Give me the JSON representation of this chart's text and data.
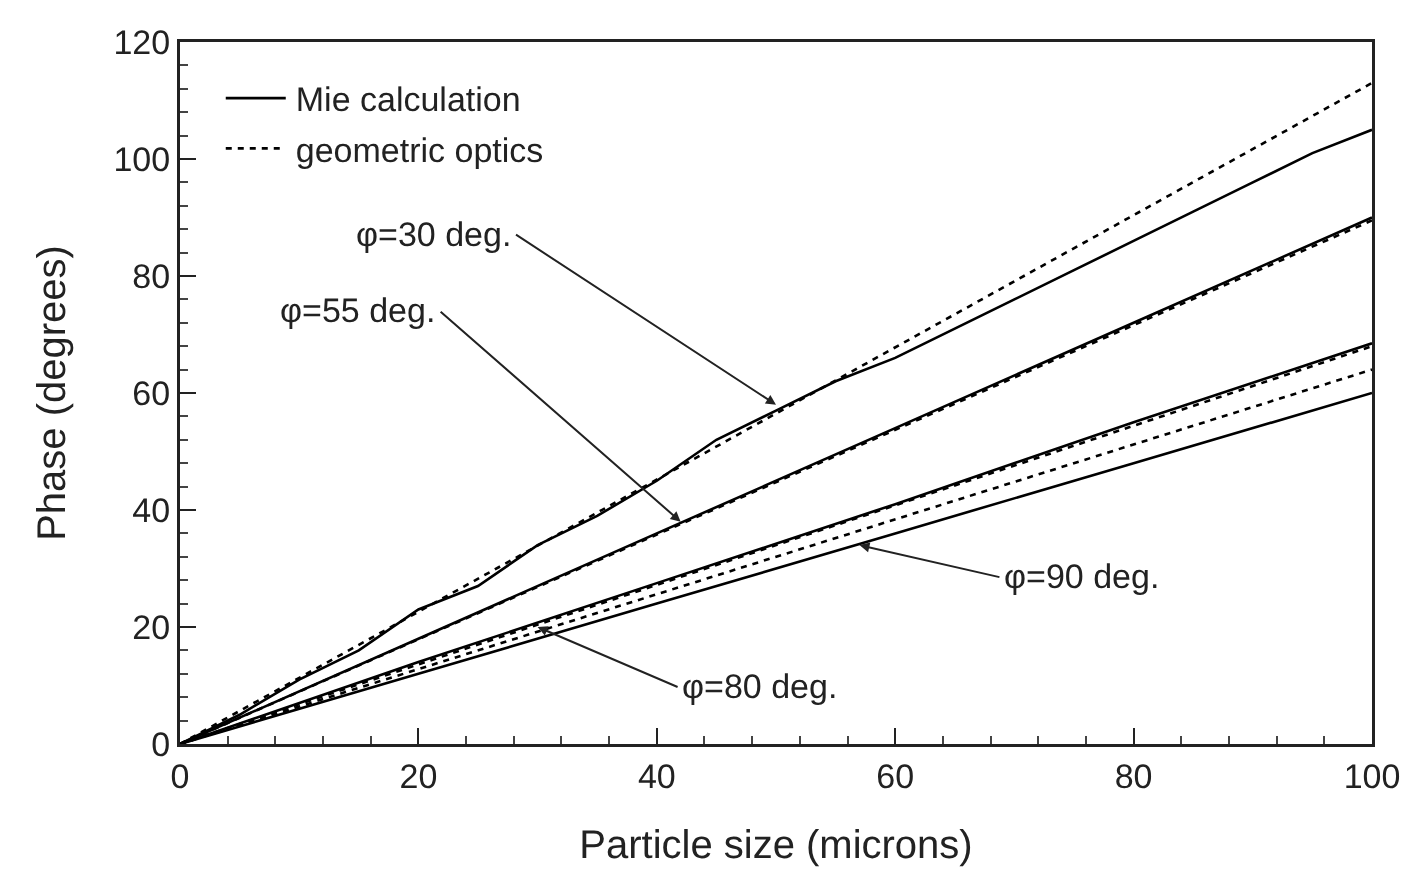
{
  "chart_data": {
    "type": "line",
    "xlabel": "Particle size (microns)",
    "ylabel": "Phase (degrees)",
    "xlim": [
      0,
      100
    ],
    "ylim": [
      0,
      120
    ],
    "xticks": [
      0,
      20,
      40,
      60,
      80,
      100
    ],
    "yticks": [
      0,
      20,
      40,
      60,
      80,
      100,
      120
    ],
    "grid": false,
    "legend": "top left",
    "marker": "none",
    "series": [
      {
        "name": "Mie calculation",
        "color": "#000000",
        "line_style": "solid",
        "x": [
          0,
          5,
          10,
          15,
          20,
          25,
          30,
          35,
          40,
          45,
          50,
          55,
          60,
          65,
          70,
          75,
          80,
          85,
          90,
          95,
          100
        ],
        "values": [
          0,
          5,
          11,
          16,
          23,
          27,
          34,
          39,
          45,
          52,
          57,
          62,
          66,
          71,
          76,
          81,
          86,
          91,
          96,
          101,
          105
        ]
      },
      {
        "name": "geometric optics",
        "color": "#000000",
        "line_style": "dotted",
        "x": [
          0,
          100
        ],
        "values": [
          0,
          113
        ]
      },
      {
        "color": "#000000",
        "line_style": "solid",
        "x": [
          0,
          20,
          40,
          60,
          80,
          100
        ],
        "values": [
          0,
          18,
          36,
          54,
          72,
          90
        ]
      },
      {
        "color": "#000000",
        "line_style": "dotted",
        "x": [
          0,
          100
        ],
        "values": [
          0,
          89.5
        ]
      },
      {
        "color": "#000000",
        "line_style": "solid",
        "x": [
          0,
          20,
          40,
          60,
          80,
          100
        ],
        "values": [
          0,
          14,
          27.5,
          41,
          55,
          68.5
        ]
      },
      {
        "color": "#000000",
        "line_style": "dotted",
        "x": [
          0,
          100
        ],
        "values": [
          0,
          68
        ]
      },
      {
        "color": "#000000",
        "line_style": "dotted",
        "x": [
          0,
          100
        ],
        "values": [
          0,
          64
        ]
      },
      {
        "color": "#000000",
        "line_style": "solid",
        "x": [
          0,
          20,
          40,
          60,
          80,
          100
        ],
        "values": [
          0,
          12,
          24,
          36,
          48,
          60
        ]
      }
    ],
    "annotations": [
      {
        "text": "φ=30 deg.",
        "x": 50,
        "y": 58
      },
      {
        "text": "φ=55 deg.",
        "x": 42,
        "y": 38
      },
      {
        "text": "φ=80 deg.",
        "x": 30,
        "y": 20
      },
      {
        "text": "φ=90 deg.",
        "x": 57,
        "y": 34
      }
    ]
  }
}
